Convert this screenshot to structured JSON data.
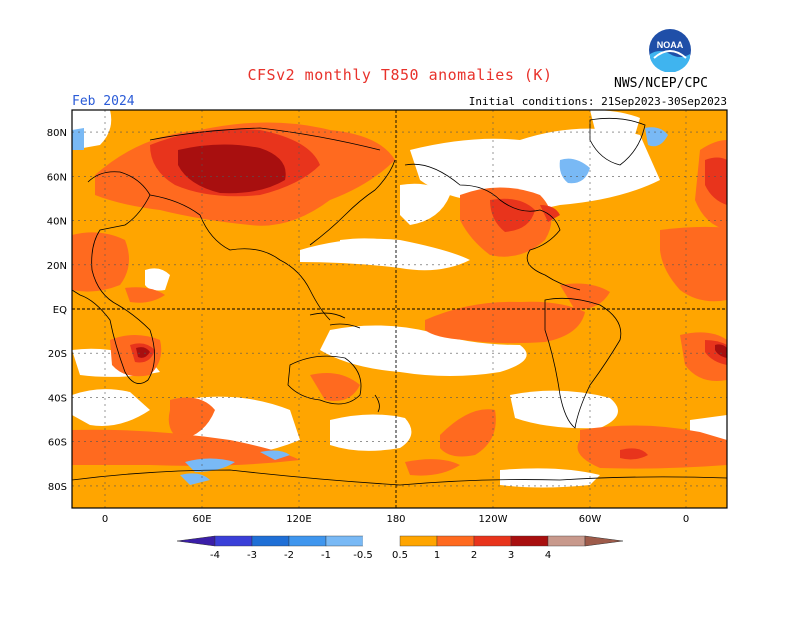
{
  "header": {
    "title": "CFSv2 monthly T850 anomalies (K)",
    "period": "Feb 2024",
    "initial_conditions": "Initial conditions: 21Sep2023-30Sep2023",
    "agency": "NWS/NCEP/CPC",
    "logo_text": "NOAA"
  },
  "map": {
    "lat_labels": [
      "80N",
      "60N",
      "40N",
      "20N",
      "EQ",
      "20S",
      "40S",
      "60S",
      "80S"
    ],
    "lon_labels": [
      "0",
      "60E",
      "120E",
      "180",
      "120W",
      "60W",
      "0"
    ]
  },
  "colorbar": {
    "labels": [
      "-4",
      "-3",
      "-2",
      "-1",
      "-0.5",
      "0.5",
      "1",
      "2",
      "3",
      "4"
    ],
    "colors": {
      "below_-4": "#3a1ea8",
      "-4_-3": "#3a3fd8",
      "-3_-2": "#1f6fd6",
      "-2_-1": "#3f96ee",
      "-1_-0.5": "#79b9f5",
      "-0.5_0.5": "#ffffff",
      "0.5_1": "#ffa500",
      "1_2": "#ff6a1f",
      "2_3": "#e8341c",
      "3_4": "#a80f0f",
      "4_5": "#c8998c",
      "above_5": "#9e5b4a"
    }
  }
}
